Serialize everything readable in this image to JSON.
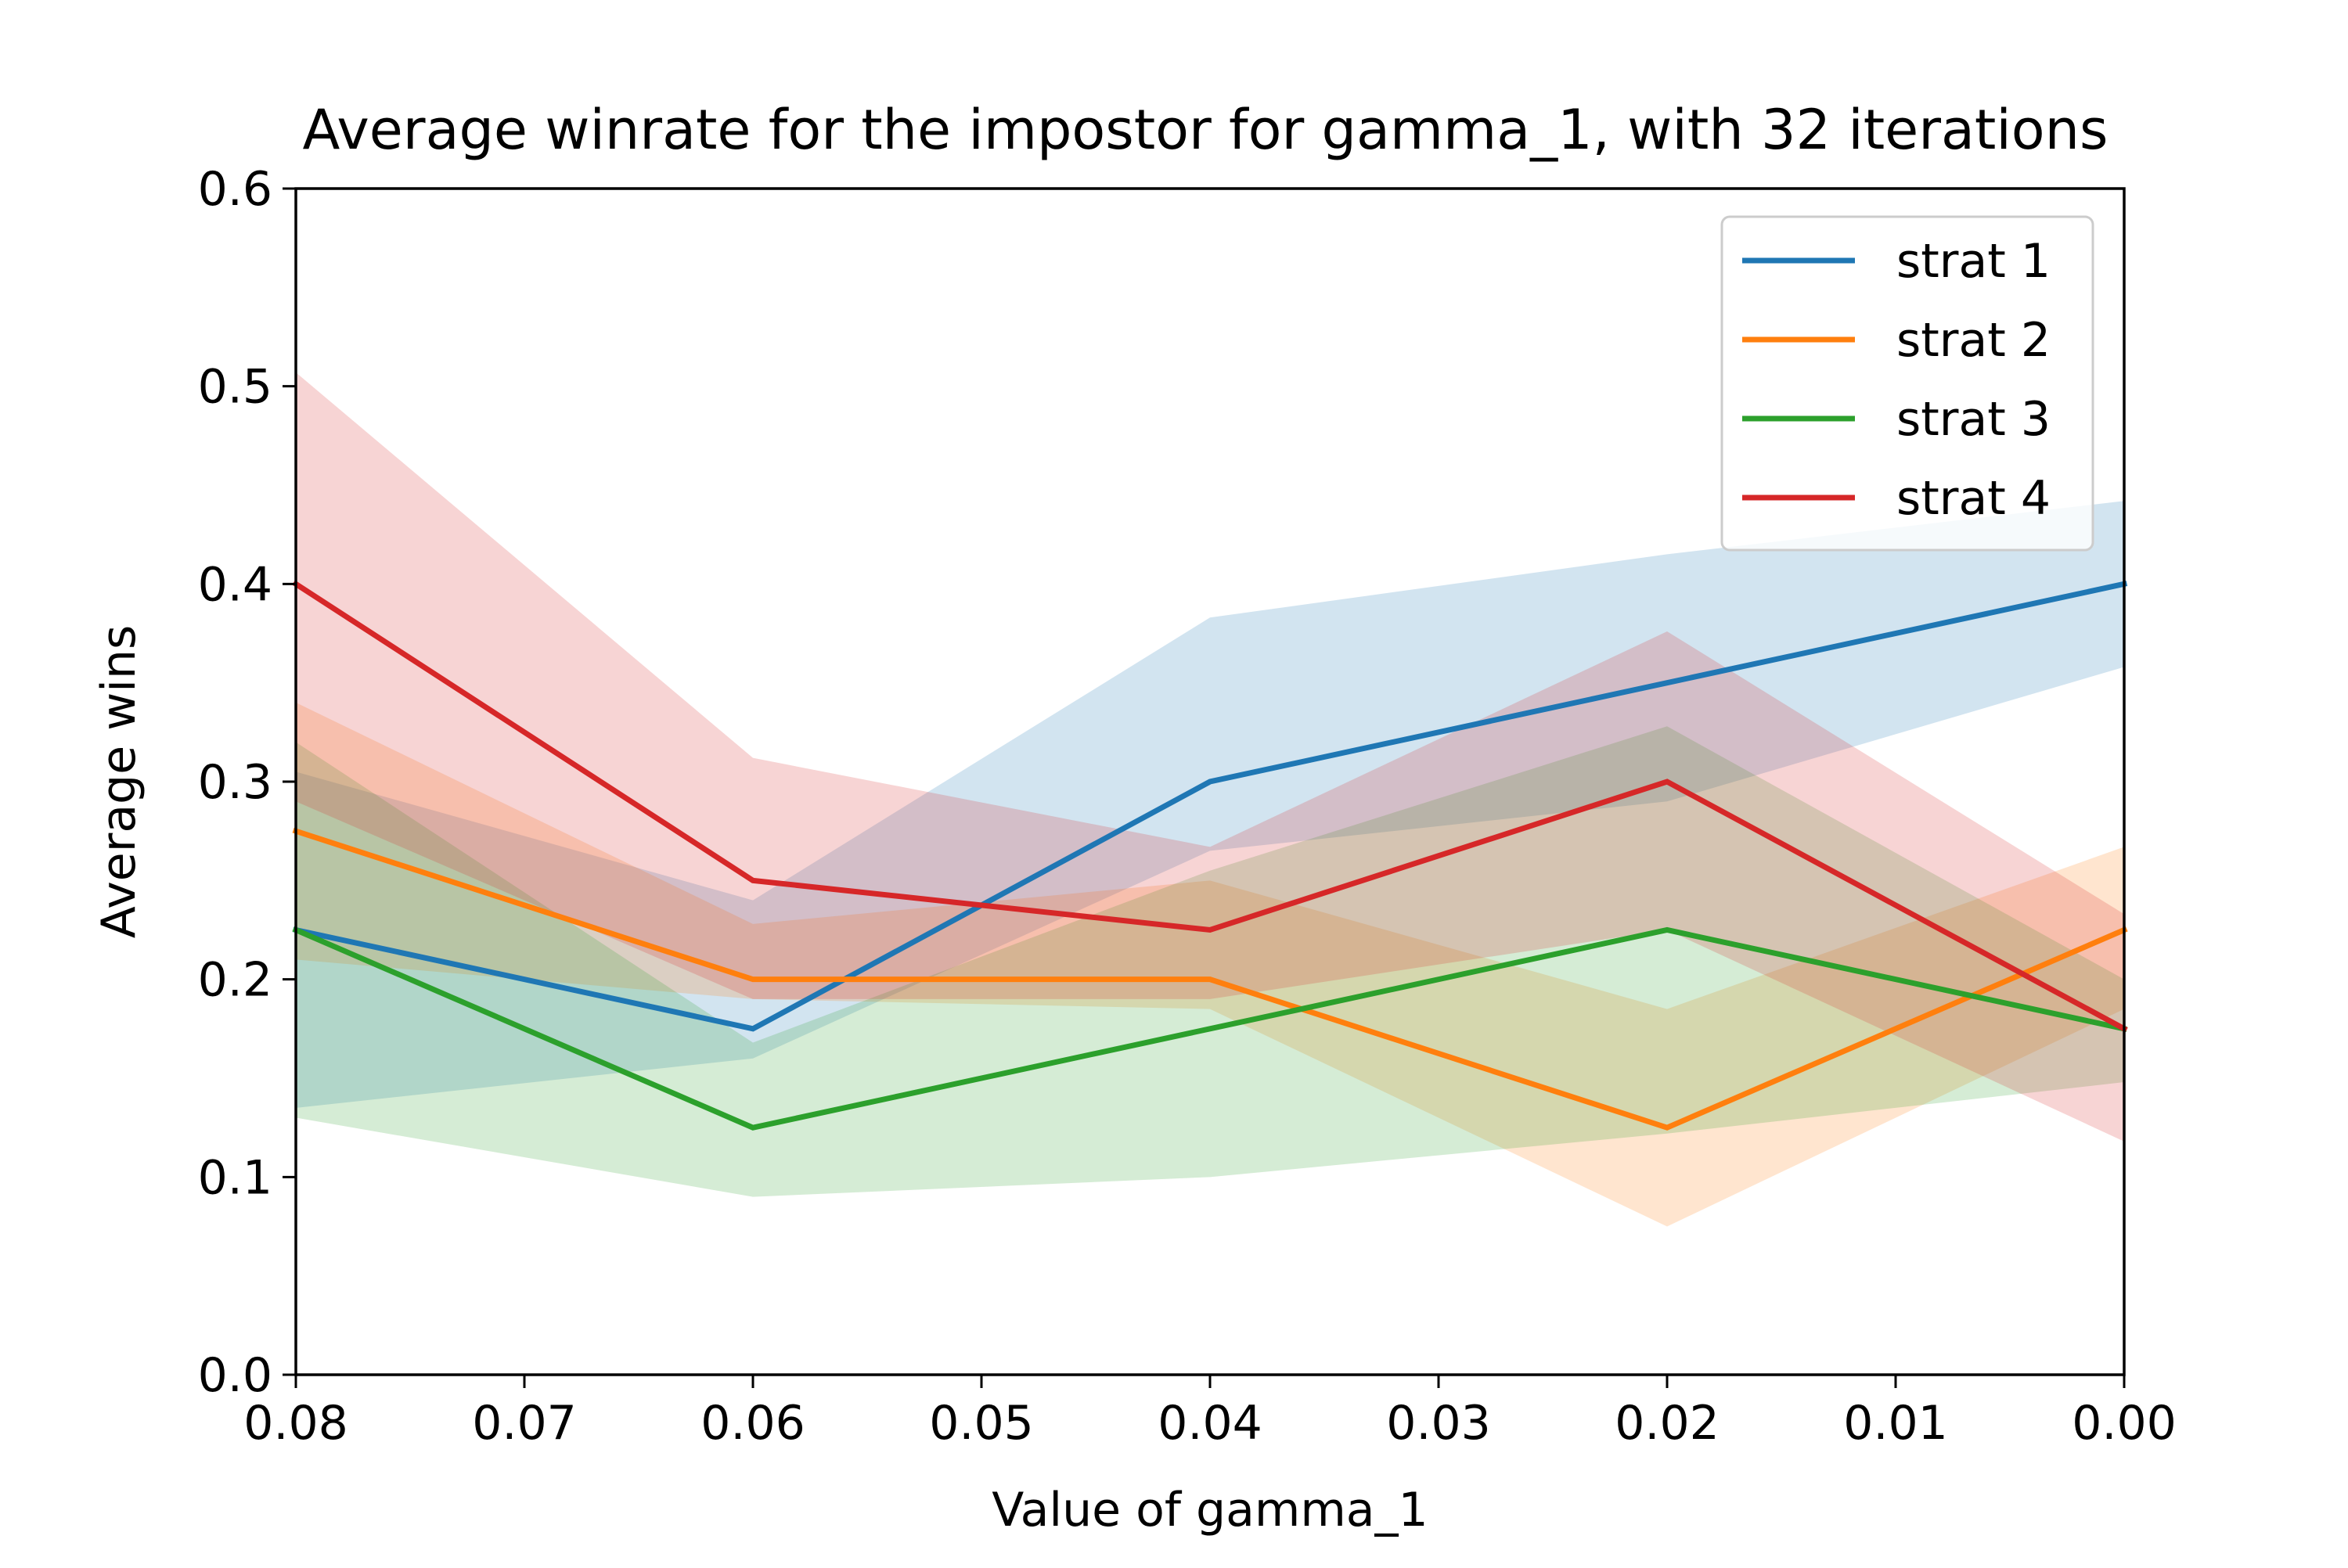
{
  "chart_data": {
    "type": "line",
    "title": "Average winrate for the impostor for gamma_1, with 32 iterations",
    "xlabel": "Value of gamma_1",
    "ylabel": "Average wins",
    "x": [
      0.08,
      0.06,
      0.04,
      0.02,
      0.0
    ],
    "xlim": [
      0.08,
      0.0
    ],
    "ylim": [
      0.0,
      0.6
    ],
    "xticks": [
      "0.08",
      "0.07",
      "0.06",
      "0.05",
      "0.04",
      "0.03",
      "0.02",
      "0.01",
      "0.00"
    ],
    "yticks": [
      "0.0",
      "0.1",
      "0.2",
      "0.3",
      "0.4",
      "0.5",
      "0.6"
    ],
    "grid": false,
    "legend_position": "top-right",
    "series": [
      {
        "name": "strat 1",
        "color": "#1f77b4",
        "values": [
          0.225,
          0.175,
          0.3,
          0.35,
          0.4
        ],
        "band_lower": [
          0.135,
          0.16,
          0.265,
          0.29,
          0.358
        ],
        "band_upper": [
          0.305,
          0.24,
          0.383,
          0.415,
          0.442
        ]
      },
      {
        "name": "strat 2",
        "color": "#ff7f0e",
        "values": [
          0.275,
          0.2,
          0.2,
          0.125,
          0.225
        ],
        "band_lower": [
          0.21,
          0.19,
          0.185,
          0.075,
          0.185
        ],
        "band_upper": [
          0.34,
          0.228,
          0.25,
          0.185,
          0.267
        ]
      },
      {
        "name": "strat 3",
        "color": "#2ca02c",
        "values": [
          0.225,
          0.125,
          0.175,
          0.225,
          0.175
        ],
        "band_lower": [
          0.13,
          0.09,
          0.1,
          0.122,
          0.148
        ],
        "band_upper": [
          0.32,
          0.168,
          0.255,
          0.328,
          0.2
        ]
      },
      {
        "name": "strat 4",
        "color": "#d62728",
        "values": [
          0.4,
          0.25,
          0.225,
          0.3,
          0.175
        ],
        "band_lower": [
          0.29,
          0.19,
          0.19,
          0.225,
          0.118
        ],
        "band_upper": [
          0.507,
          0.312,
          0.267,
          0.376,
          0.233
        ]
      }
    ]
  }
}
